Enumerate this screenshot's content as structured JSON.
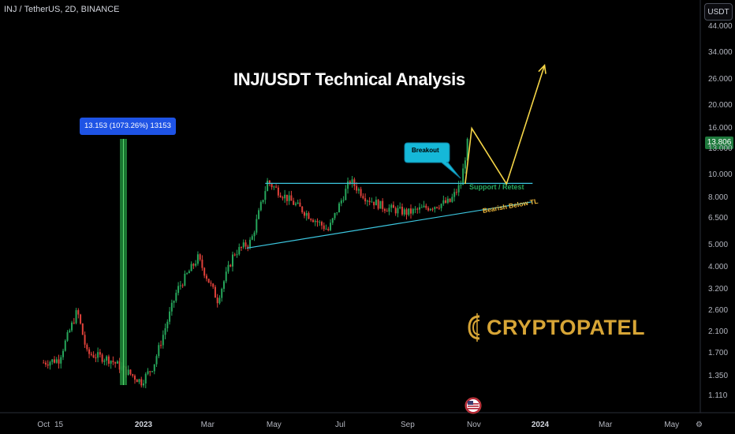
{
  "header": {
    "symbol_line": "INJ / TetherUS, 2D, BINANCE"
  },
  "toolbar": {
    "currency": "USDT"
  },
  "chart_data": {
    "type": "candlestick",
    "title": "INJ/USDT Technical Analysis",
    "y_scale": "log",
    "y_ticks": [
      "44.000",
      "34.000",
      "26.000",
      "20.000",
      "16.000",
      "13.000",
      "10.000",
      "8.000",
      "6.500",
      "5.000",
      "4.000",
      "3.200",
      "2.600",
      "2.100",
      "1.700",
      "1.350",
      "1.110"
    ],
    "x_ticks": [
      "Oct",
      "15",
      "2023",
      "Mar",
      "May",
      "Jul",
      "Sep",
      "Nov",
      "2024",
      "Mar",
      "May"
    ],
    "x_ticks_bold": [
      "2023",
      "2024"
    ],
    "last_price": "13.806",
    "up_color": "#26a65b",
    "down_color": "#e0413a",
    "price_path": [
      [
        "2022-10-01",
        1.55
      ],
      [
        "2022-10-15",
        1.6
      ],
      [
        "2022-11-01",
        2.6
      ],
      [
        "2022-11-10",
        1.7
      ],
      [
        "2022-12-01",
        1.6
      ],
      [
        "2022-12-30",
        1.28
      ],
      [
        "2023-01-10",
        1.5
      ],
      [
        "2023-02-01",
        3.2
      ],
      [
        "2023-02-20",
        4.4
      ],
      [
        "2023-03-10",
        2.9
      ],
      [
        "2023-03-25",
        4.6
      ],
      [
        "2023-04-10",
        5.2
      ],
      [
        "2023-04-25",
        9.4
      ],
      [
        "2023-05-10",
        8.2
      ],
      [
        "2023-06-01",
        6.8
      ],
      [
        "2023-06-20",
        5.8
      ],
      [
        "2023-07-10",
        9.5
      ],
      [
        "2023-07-25",
        8.0
      ],
      [
        "2023-08-10",
        7.3
      ],
      [
        "2023-09-01",
        6.9
      ],
      [
        "2023-09-20",
        7.3
      ],
      [
        "2023-10-10",
        7.7
      ],
      [
        "2023-10-20",
        9.2
      ],
      [
        "2023-10-26",
        13.806
      ]
    ],
    "annotations": {
      "measure": "13.153 (1073.26%) 13153",
      "breakout": "Breakout",
      "support": "Support / Retest",
      "bearish": "Bearish Below TL",
      "projection": [
        [
          "2023-10-24",
          9.2
        ],
        [
          "2023-10-30",
          16.0
        ],
        [
          "2023-12-01",
          9.2
        ],
        [
          "2024-01-05",
          30.0
        ]
      ],
      "resistance_line": {
        "price": 9.25,
        "from": "2023-04-23",
        "to": "2023-12-25"
      },
      "trendline": {
        "from": [
          "2023-04-06",
          4.85
        ],
        "to": [
          "2023-12-25",
          7.7
        ]
      }
    }
  },
  "branding": {
    "logo_text": "CRYPTOPATEL"
  }
}
